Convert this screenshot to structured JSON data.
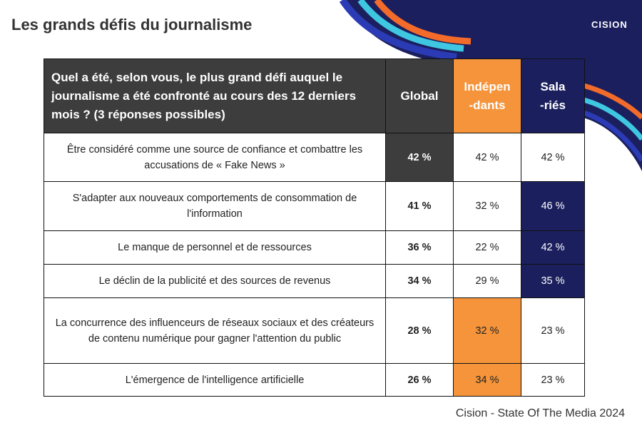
{
  "header": {
    "title": "Les grands défis du journalisme",
    "logo": "CISION"
  },
  "table": {
    "headers": [
      "Quel a été, selon vous, le plus grand défi auquel le journalisme a été confronté au cours des 12 derniers mois ? (3 réponses possibles)",
      "Global",
      "Indépen\n-dants",
      "Sala\n-riés"
    ],
    "rows": [
      [
        "Être considéré comme une source de confiance et combattre les accusations de « Fake News »",
        "42 %",
        "42 %",
        "42 %"
      ],
      [
        "S'adapter aux nouveaux comportements de consommation de l'information",
        "41 %",
        "32 %",
        "46 %"
      ],
      [
        "Le manque de personnel et de ressources",
        "36 %",
        "22 %",
        "42 %"
      ],
      [
        "Le déclin de la publicité et des sources de revenus",
        "34 %",
        "29 %",
        "35 %"
      ],
      [
        "La concurrence des influenceurs de réseaux sociaux et des créateurs de contenu numérique pour gagner l'attention du public",
        "28 %",
        "32 %",
        "23 %"
      ],
      [
        "L'émergence de l'intelligence artificielle",
        "26 %",
        "34 %",
        "23 %"
      ]
    ]
  },
  "footer": {
    "source": "Cision - State Of The Media 2024"
  }
}
